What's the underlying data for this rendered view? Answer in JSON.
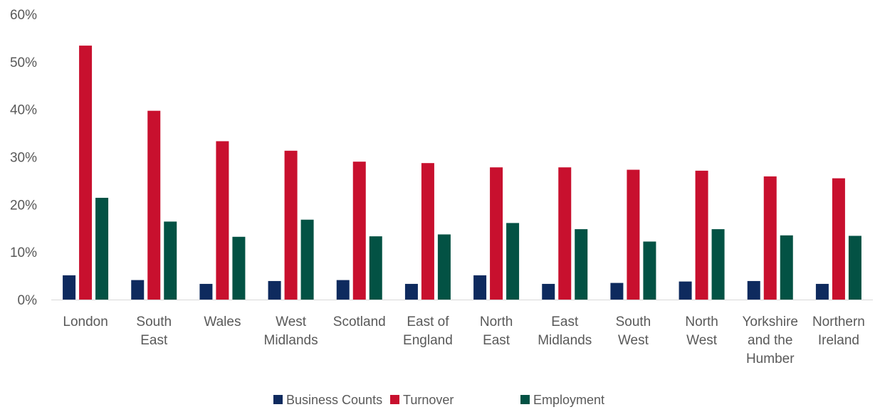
{
  "chart_data": {
    "type": "bar",
    "title": "",
    "xlabel": "",
    "ylabel": "",
    "ylim": [
      0,
      60
    ],
    "y_ticks": [
      "0%",
      "10%",
      "20%",
      "30%",
      "40%",
      "50%",
      "60%"
    ],
    "grid": false,
    "legend_position": "bottom",
    "categories": [
      [
        "London"
      ],
      [
        "South",
        "East"
      ],
      [
        "Wales"
      ],
      [
        "West",
        "Midlands"
      ],
      [
        "Scotland"
      ],
      [
        "East of",
        "England"
      ],
      [
        "North",
        "East"
      ],
      [
        "East",
        "Midlands"
      ],
      [
        "South",
        "West"
      ],
      [
        "North",
        "West"
      ],
      [
        "Yorkshire",
        "and the",
        "Humber"
      ],
      [
        "Northern",
        "Ireland"
      ]
    ],
    "series": [
      {
        "name": "Business Counts",
        "color": "#0e2a5e",
        "values": [
          5.1,
          4.1,
          3.3,
          3.9,
          4.1,
          3.3,
          5.1,
          3.3,
          3.5,
          3.8,
          3.9,
          3.3
        ]
      },
      {
        "name": "Turnover",
        "color": "#c8102e",
        "values": [
          53.4,
          39.7,
          33.3,
          31.3,
          29.0,
          28.7,
          27.8,
          27.8,
          27.3,
          27.1,
          25.9,
          25.5
        ]
      },
      {
        "name": "Employment",
        "color": "#035244",
        "values": [
          21.4,
          16.4,
          13.2,
          16.8,
          13.3,
          13.7,
          16.1,
          14.8,
          12.2,
          14.8,
          13.5,
          13.4
        ]
      }
    ]
  }
}
